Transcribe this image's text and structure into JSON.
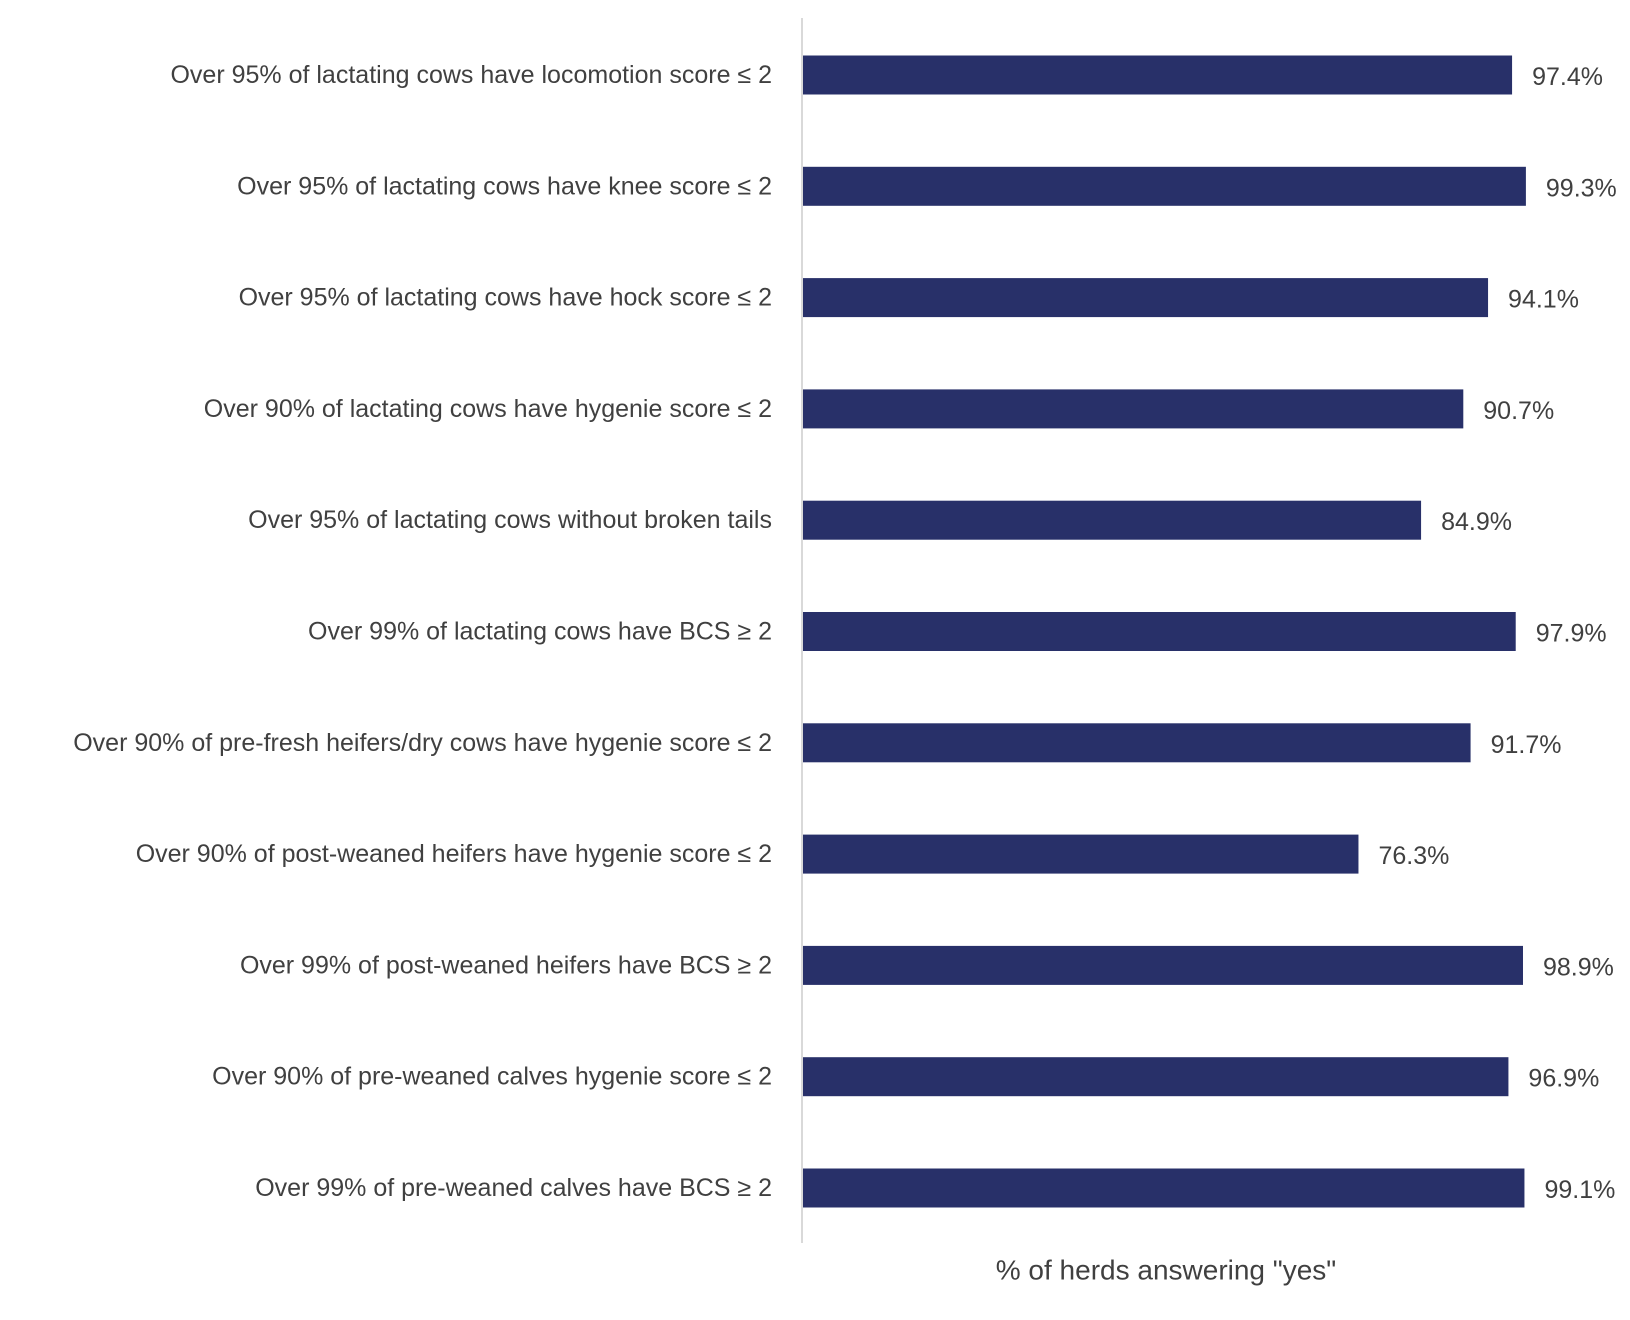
{
  "chart_data": {
    "type": "bar",
    "orientation": "horizontal",
    "categories": [
      "Over 95% of lactating cows have locomotion score ≤ 2",
      "Over 95% of lactating cows have knee score ≤ 2",
      "Over 95% of lactating cows have hock score ≤ 2",
      "Over 90% of lactating cows have hygenie score ≤ 2",
      "Over 95% of lactating cows without broken tails",
      "Over 99% of lactating cows have BCS ≥ 2",
      "Over 90% of pre-fresh heifers/dry cows have hygenie score ≤ 2",
      "Over 90% of post-weaned heifers have hygenie score ≤ 2",
      "Over 99% of post-weaned heifers have BCS ≥ 2",
      "Over 90% of pre-weaned calves hygenie score ≤ 2",
      "Over 99% of pre-weaned calves have BCS ≥ 2"
    ],
    "values": [
      97.4,
      99.3,
      94.1,
      90.7,
      84.9,
      97.9,
      91.7,
      76.3,
      98.9,
      96.9,
      99.1
    ],
    "value_labels": [
      "97.4%",
      "99.3%",
      "94.1%",
      "90.7%",
      "84.9%",
      "97.9%",
      "91.7%",
      "76.3%",
      "98.9%",
      "96.9%",
      "99.1%"
    ],
    "title": "",
    "xlabel": "% of herds answering \"yes\"",
    "ylabel": "",
    "xlim": [
      0,
      100
    ],
    "grid": false,
    "legend": "none",
    "bar_color": "#283069",
    "axis_color": "#d9d9d9",
    "text_color": "#404040"
  }
}
